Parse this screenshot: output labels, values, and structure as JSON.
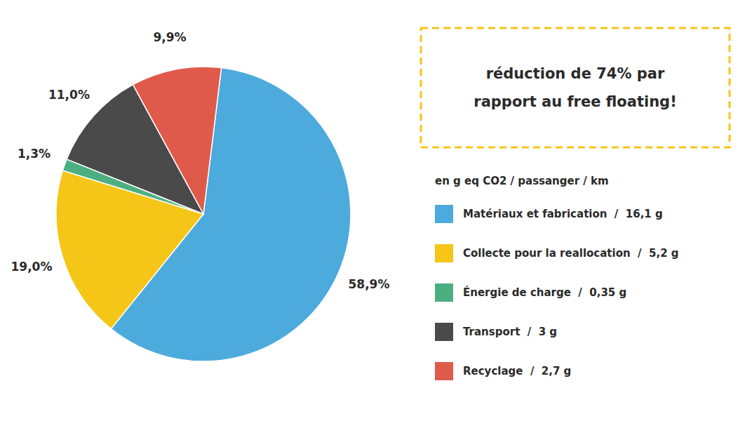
{
  "chart_data": {
    "type": "pie",
    "categories": [
      "Matériaux et fabrication  /  16,1 g",
      "Collecte pour la reallocation  /  5,2 g",
      "Énergie de charge  /  0,35 g",
      "Transport  /  3 g",
      "Recyclage  /  2,7 g"
    ],
    "values": [
      58.9,
      19.0,
      1.3,
      11.0,
      9.9
    ],
    "value_labels": [
      "58,9%",
      "19,0%",
      "1,3%",
      "11,0%",
      "9,9%"
    ],
    "colors": [
      "#4DAADC",
      "#F5C518",
      "#4CAF82",
      "#4A4A4A",
      "#E05A4B"
    ],
    "data_labels": true,
    "legend": "right",
    "legend_title": "en g eq CO2 / passanger / km",
    "annotations": [
      {
        "lines": [
          "réduction de 74% par",
          "rapport au free floating!"
        ],
        "color": "#F5C518"
      }
    ]
  }
}
